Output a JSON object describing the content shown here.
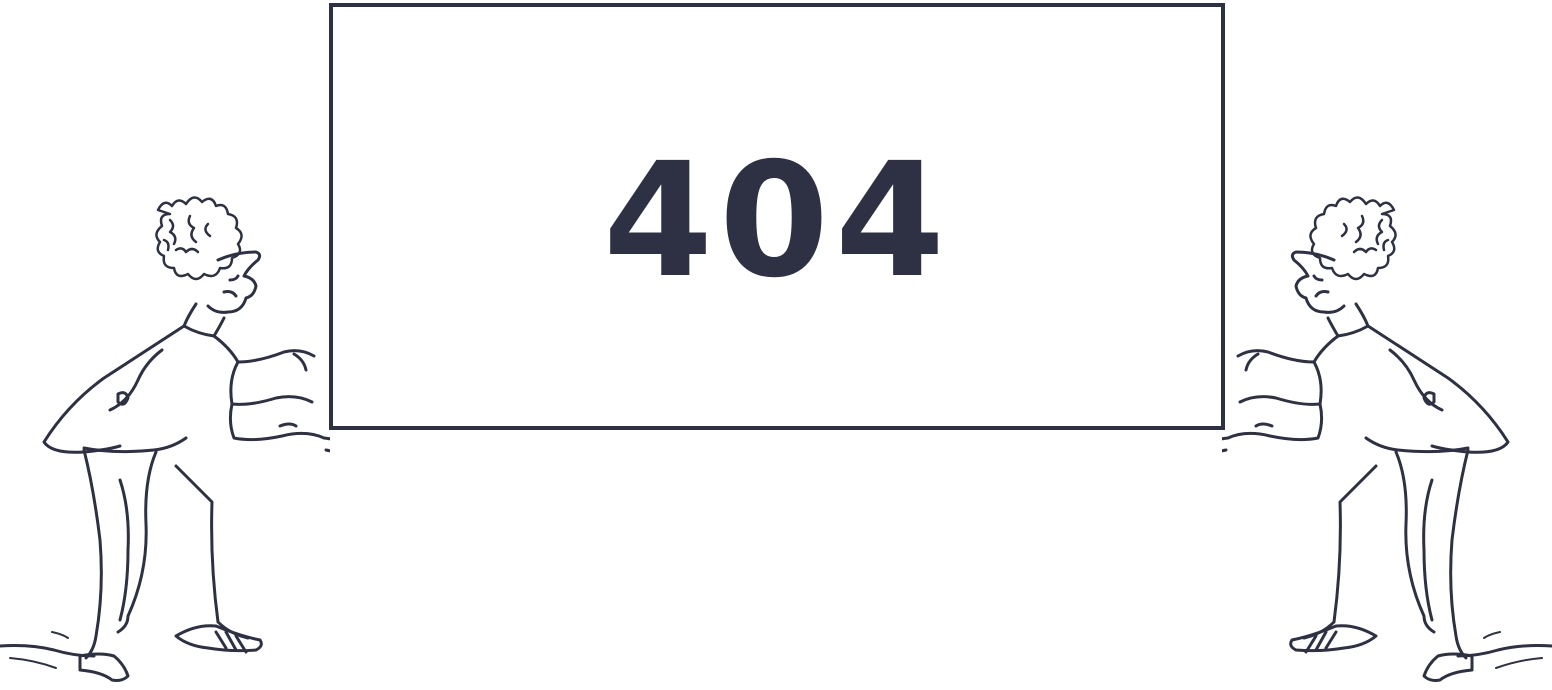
{
  "error": {
    "code": "404"
  },
  "colors": {
    "ink": "#2e3144",
    "background": "#ffffff"
  },
  "icons": {
    "left_figure": "man-holding-sign-illustration",
    "right_figure": "man-holding-sign-illustration"
  }
}
